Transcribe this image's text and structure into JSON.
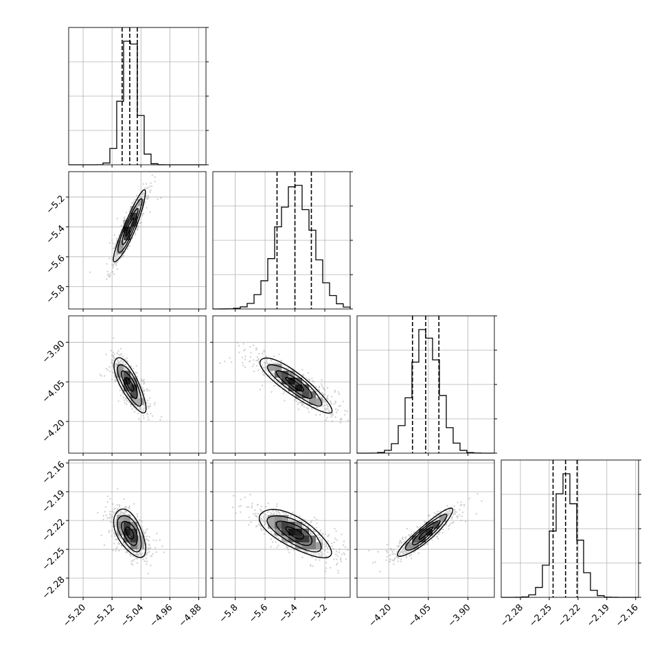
{
  "chart_data": {
    "type": "corner",
    "parameters": [
      {
        "ticks": [
          "−5.20",
          "−5.12",
          "−5.04",
          "−4.96",
          "−4.88"
        ],
        "tick_values": [
          -5.2,
          -5.12,
          -5.04,
          -4.96,
          -4.88
        ],
        "range": [
          -5.24,
          -4.86
        ],
        "quantiles": [
          -5.092,
          -5.071,
          -5.05
        ],
        "mean": -5.071,
        "sd": 0.022,
        "hist_peak": 1.0
      },
      {
        "ticks": [
          "−5.8",
          "−5.6",
          "−5.4",
          "−5.2"
        ],
        "tick_values": [
          -5.8,
          -5.6,
          -5.4,
          -5.2
        ],
        "range": [
          -5.95,
          -5.03
        ],
        "quantiles": [
          -5.52,
          -5.4,
          -5.29
        ],
        "mean": -5.4,
        "sd": 0.12,
        "hist_peak": 1.0
      },
      {
        "ticks": [
          "−4.20",
          "−4.05",
          "−3.90"
        ],
        "tick_values": [
          -4.2,
          -4.05,
          -3.9
        ],
        "range": [
          -4.32,
          -3.8
        ],
        "quantiles": [
          -4.11,
          -4.06,
          -4.01
        ],
        "mean": -4.06,
        "sd": 0.052,
        "hist_peak": 1.0
      },
      {
        "ticks": [
          "−2.28",
          "−2.25",
          "−2.22",
          "−2.19",
          "−2.16"
        ],
        "tick_values": [
          -2.28,
          -2.25,
          -2.22,
          -2.19,
          -2.16
        ],
        "range": [
          -2.3,
          -2.157
        ],
        "quantiles": [
          -2.246,
          -2.233,
          -2.221
        ],
        "mean": -2.233,
        "sd": 0.0125,
        "hist_peak": 1.0
      }
    ],
    "correlations": {
      "1-0": 0.92,
      "2-0": -0.78,
      "2-1": -0.88,
      "3-0": -0.55,
      "3-1": -0.72,
      "3-2": 0.92
    },
    "contour_levels_sigma": [
      0.5,
      1.0,
      1.5,
      2.0
    ],
    "grid": true,
    "legend": "none",
    "colors": {
      "line": "#000000",
      "grid": "#b0b0b0",
      "points": "#9a9a9a"
    }
  }
}
